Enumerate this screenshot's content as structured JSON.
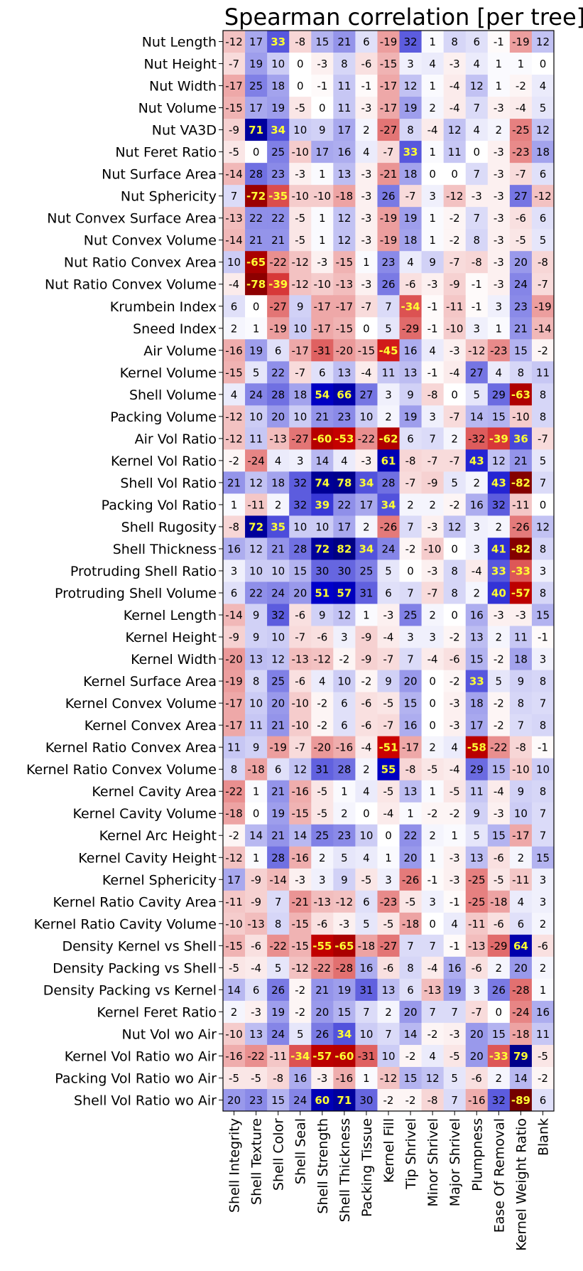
{
  "chart_data": {
    "type": "heatmap",
    "title": "Spearman correlation [per tree]",
    "value_range": [
      -100,
      100
    ],
    "highlight_threshold": 33,
    "colormap": {
      "negative": "#cc0000",
      "zero": "#ffffff",
      "positive": "#0000cc"
    },
    "colors": {
      "highlight_text": "#ffff33",
      "normal_text": "#000000"
    },
    "x_categories": [
      "Shell Integrity",
      "Shell Texture",
      "Shell Color",
      "Shell Seal",
      "Shell Strength",
      "Shell Thickness",
      "Packing Tissue",
      "Kernel Fill",
      "Tip Shrivel",
      "Minor Shrivel",
      "Major Shrivel",
      "Plumpness",
      "Ease Of Removal",
      "Kernel Weight Ratio",
      "Blank"
    ],
    "y_categories": [
      "Nut Length",
      "Nut Height",
      "Nut Width",
      "Nut Volume",
      "Nut VA3D",
      "Nut Feret Ratio",
      "Nut Surface Area",
      "Nut Sphericity",
      "Nut Convex Surface Area",
      "Nut Convex Volume",
      "Nut Ratio Convex Area",
      "Nut Ratio Convex Volume",
      "Krumbein Index",
      "Sneed Index",
      "Air Volume",
      "Kernel Volume",
      "Shell Volume",
      "Packing Volume",
      "Air Vol Ratio",
      "Kernel Vol Ratio",
      "Shell Vol Ratio",
      "Packing Vol Ratio",
      "Shell Rugosity",
      "Shell Thickness",
      "Protruding Shell Ratio",
      "Protruding Shell Volume",
      "Kernel Length",
      "Kernel Height",
      "Kernel Width",
      "Kernel Surface Area",
      "Kernel Convex Volume",
      "Kernel Convex Area",
      "Kernel Ratio Convex Area",
      "Kernel Ratio Convex Volume",
      "Kernel Cavity Area",
      "Kernel Cavity Volume",
      "Kernel Arc Height",
      "Kernel Cavity Height",
      "Kernel Sphericity",
      "Kernel Ratio Cavity Area",
      "Kernel Ratio Cavity Volume",
      "Density Kernel vs Shell",
      "Density Packing vs Shell",
      "Density Packing vs Kernel",
      "Kernel Feret Ratio",
      "Nut Vol wo Air",
      "Kernel Vol Ratio wo Air",
      "Packing Vol Ratio wo Air",
      "Shell Vol Ratio wo Air"
    ],
    "values": [
      [
        -12,
        17,
        33,
        -8,
        15,
        21,
        6,
        -19,
        32,
        1,
        8,
        6,
        -1,
        -19,
        12
      ],
      [
        -7,
        19,
        10,
        0,
        -3,
        8,
        -6,
        -15,
        3,
        4,
        -3,
        4,
        1,
        1,
        0
      ],
      [
        -17,
        25,
        18,
        0,
        -1,
        11,
        -1,
        -17,
        12,
        1,
        -4,
        12,
        1,
        -2,
        4
      ],
      [
        -15,
        17,
        19,
        -5,
        0,
        11,
        -3,
        -17,
        19,
        2,
        -4,
        7,
        -3,
        -4,
        5
      ],
      [
        -9,
        71,
        34,
        10,
        9,
        17,
        2,
        -27,
        8,
        -4,
        12,
        4,
        2,
        -25,
        12
      ],
      [
        -5,
        0,
        25,
        -10,
        17,
        16,
        4,
        -7,
        33,
        1,
        11,
        0,
        -3,
        -23,
        18
      ],
      [
        -14,
        28,
        23,
        -3,
        1,
        13,
        -3,
        -21,
        18,
        0,
        0,
        7,
        -3,
        -7,
        6
      ],
      [
        7,
        -72,
        -35,
        -10,
        -10,
        -18,
        -3,
        26,
        -7,
        3,
        -12,
        -3,
        -3,
        27,
        -12
      ],
      [
        -13,
        22,
        22,
        -5,
        1,
        12,
        -3,
        -19,
        19,
        1,
        -2,
        7,
        -3,
        -6,
        6
      ],
      [
        -14,
        21,
        21,
        -5,
        1,
        12,
        -3,
        -19,
        18,
        1,
        -2,
        8,
        -3,
        -5,
        5
      ],
      [
        10,
        -65,
        -22,
        -12,
        -3,
        -15,
        1,
        23,
        4,
        9,
        -7,
        -8,
        -3,
        20,
        -8
      ],
      [
        -4,
        -78,
        -39,
        -12,
        -10,
        -13,
        -3,
        26,
        -6,
        -3,
        -9,
        -1,
        -3,
        24,
        -7
      ],
      [
        6,
        0,
        -27,
        9,
        -17,
        -17,
        -7,
        7,
        -34,
        -1,
        -11,
        -1,
        3,
        23,
        -19
      ],
      [
        2,
        1,
        -19,
        10,
        -17,
        -15,
        0,
        5,
        -29,
        -1,
        -10,
        3,
        1,
        21,
        -14
      ],
      [
        -16,
        19,
        6,
        -17,
        -31,
        -20,
        -15,
        -45,
        16,
        4,
        -3,
        -12,
        -23,
        15,
        -2
      ],
      [
        -15,
        5,
        22,
        -7,
        6,
        13,
        -4,
        11,
        13,
        -1,
        -4,
        27,
        4,
        8,
        11
      ],
      [
        4,
        24,
        28,
        18,
        54,
        66,
        27,
        3,
        9,
        -8,
        0,
        5,
        29,
        -63,
        8
      ],
      [
        -12,
        10,
        20,
        10,
        21,
        23,
        10,
        2,
        19,
        3,
        -7,
        14,
        15,
        -10,
        8
      ],
      [
        -12,
        11,
        -13,
        -27,
        -60,
        -53,
        -22,
        -62,
        6,
        7,
        2,
        -32,
        -39,
        36,
        -7
      ],
      [
        -2,
        -24,
        4,
        3,
        14,
        4,
        -3,
        61,
        -8,
        -7,
        -7,
        43,
        12,
        21,
        5
      ],
      [
        21,
        12,
        18,
        32,
        74,
        78,
        34,
        28,
        -7,
        -9,
        5,
        2,
        43,
        -82,
        7
      ],
      [
        1,
        -11,
        2,
        32,
        39,
        22,
        17,
        34,
        2,
        2,
        -2,
        16,
        32,
        -11,
        0
      ],
      [
        -8,
        72,
        35,
        10,
        10,
        17,
        2,
        -26,
        7,
        -3,
        12,
        3,
        2,
        -26,
        12
      ],
      [
        16,
        12,
        21,
        28,
        72,
        82,
        34,
        24,
        -2,
        -10,
        0,
        3,
        41,
        -82,
        8
      ],
      [
        3,
        10,
        10,
        15,
        30,
        30,
        25,
        5,
        0,
        -3,
        8,
        -4,
        33,
        -33,
        3
      ],
      [
        6,
        22,
        24,
        20,
        51,
        57,
        31,
        6,
        7,
        -7,
        8,
        2,
        40,
        -57,
        8
      ],
      [
        -14,
        9,
        32,
        -6,
        9,
        12,
        1,
        -3,
        25,
        2,
        0,
        16,
        -3,
        -3,
        15
      ],
      [
        -9,
        9,
        10,
        -7,
        -6,
        3,
        -9,
        -4,
        3,
        3,
        -2,
        13,
        2,
        11,
        -1
      ],
      [
        -20,
        13,
        12,
        -13,
        -12,
        -2,
        -9,
        -7,
        7,
        -4,
        -6,
        15,
        -2,
        18,
        3
      ],
      [
        -19,
        8,
        25,
        -6,
        4,
        10,
        -2,
        9,
        20,
        0,
        -2,
        33,
        5,
        9,
        8
      ],
      [
        -17,
        10,
        20,
        -10,
        -2,
        6,
        -6,
        -5,
        15,
        0,
        -3,
        18,
        -2,
        8,
        7
      ],
      [
        -17,
        11,
        21,
        -10,
        -2,
        6,
        -6,
        -7,
        16,
        0,
        -3,
        17,
        -2,
        7,
        8
      ],
      [
        11,
        9,
        -19,
        -7,
        -20,
        -16,
        -4,
        -51,
        -17,
        2,
        4,
        -58,
        -22,
        -8,
        -1
      ],
      [
        8,
        -18,
        6,
        12,
        31,
        28,
        2,
        55,
        -8,
        -5,
        -4,
        29,
        15,
        -10,
        10
      ],
      [
        -22,
        1,
        21,
        -16,
        -5,
        1,
        4,
        -5,
        13,
        1,
        -5,
        11,
        -4,
        9,
        8
      ],
      [
        -18,
        0,
        19,
        -15,
        -5,
        2,
        0,
        -4,
        1,
        -2,
        -2,
        9,
        -3,
        10,
        7
      ],
      [
        -2,
        14,
        21,
        14,
        25,
        23,
        10,
        0,
        22,
        2,
        1,
        5,
        15,
        -17,
        7
      ],
      [
        -12,
        1,
        28,
        -16,
        2,
        5,
        4,
        1,
        20,
        1,
        -3,
        13,
        -6,
        2,
        15
      ],
      [
        17,
        -9,
        -14,
        -3,
        3,
        9,
        -5,
        3,
        -26,
        -1,
        -3,
        -25,
        -5,
        -11,
        3
      ],
      [
        -11,
        -9,
        7,
        -21,
        -13,
        -12,
        6,
        -23,
        -5,
        3,
        -1,
        -25,
        -18,
        4,
        3
      ],
      [
        -10,
        -13,
        8,
        -15,
        -6,
        -3,
        5,
        -5,
        -18,
        0,
        4,
        -11,
        -6,
        6,
        2
      ],
      [
        -15,
        -6,
        -22,
        -15,
        -55,
        -65,
        -18,
        -27,
        7,
        7,
        -1,
        -13,
        -29,
        64,
        -6
      ],
      [
        -5,
        -4,
        5,
        -12,
        -22,
        -28,
        16,
        -6,
        8,
        -4,
        16,
        -6,
        2,
        20,
        2
      ],
      [
        14,
        6,
        26,
        -2,
        21,
        19,
        31,
        13,
        6,
        -13,
        19,
        3,
        26,
        -28,
        1
      ],
      [
        2,
        -3,
        19,
        -2,
        20,
        15,
        7,
        2,
        20,
        7,
        7,
        -7,
        0,
        -24,
        16
      ],
      [
        -10,
        13,
        24,
        5,
        26,
        34,
        10,
        7,
        14,
        -2,
        -3,
        20,
        15,
        -18,
        11
      ],
      [
        -16,
        -22,
        -11,
        -34,
        -57,
        -60,
        -31,
        10,
        -2,
        4,
        -5,
        20,
        -33,
        79,
        -5
      ],
      [
        -5,
        -5,
        -8,
        16,
        -3,
        -16,
        1,
        -12,
        15,
        12,
        5,
        -6,
        2,
        14,
        -2
      ],
      [
        20,
        23,
        15,
        24,
        60,
        71,
        30,
        -2,
        -2,
        -8,
        7,
        -16,
        32,
        -89,
        6
      ]
    ]
  }
}
